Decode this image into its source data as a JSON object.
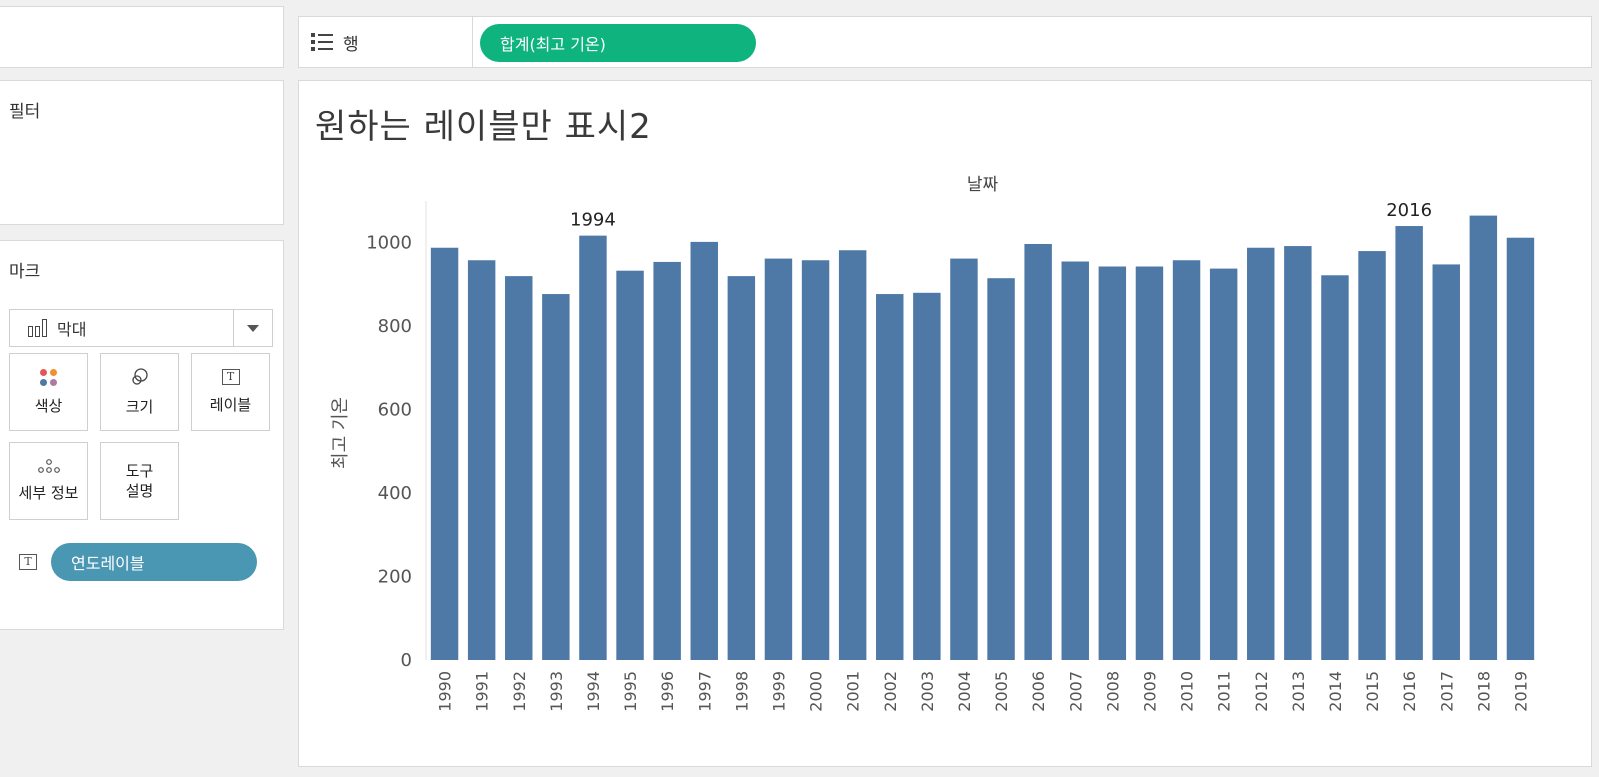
{
  "rows_shelf": {
    "label": "행",
    "pill": "합계(최고 기온)",
    "pill_color": "#0eb37e"
  },
  "filter_card": {
    "title": "필터"
  },
  "marks_card": {
    "title": "마크",
    "mark_type": "막대",
    "buttons": [
      {
        "label": "색상",
        "icon": "color-icon"
      },
      {
        "label": "크기",
        "icon": "size-icon"
      },
      {
        "label": "레이블",
        "icon": "text-icon"
      },
      {
        "label": "세부 정보",
        "icon": "detail-icon"
      },
      {
        "label": "도구 설명",
        "icon": "tooltip"
      }
    ],
    "label_pill": "연도레이블",
    "label_pill_color": "#4a97b3"
  },
  "view": {
    "title": "원하는 레이블만 표시2"
  },
  "chart_data": {
    "type": "bar",
    "title": "원하는 레이블만 표시2",
    "header": "날짜",
    "xlabel": "",
    "ylabel": "최고 기온",
    "ylim": [
      0,
      1100
    ],
    "yticks": [
      0,
      200,
      400,
      600,
      800,
      1000
    ],
    "bar_color": "#4e79a7",
    "categories": [
      "1990",
      "1991",
      "1992",
      "1993",
      "1994",
      "1995",
      "1996",
      "1997",
      "1998",
      "1999",
      "2000",
      "2001",
      "2002",
      "2003",
      "2004",
      "2005",
      "2006",
      "2007",
      "2008",
      "2009",
      "2010",
      "2011",
      "2012",
      "2013",
      "2014",
      "2015",
      "2016",
      "2017",
      "2018",
      "2019"
    ],
    "values": [
      988,
      958,
      920,
      877,
      1017,
      933,
      954,
      1002,
      920,
      962,
      958,
      982,
      877,
      880,
      962,
      915,
      997,
      955,
      943,
      943,
      958,
      938,
      988,
      992,
      922,
      980,
      1040,
      948,
      1065,
      1012
    ],
    "data_labels": [
      {
        "category": "1994",
        "text": "1994"
      },
      {
        "category": "2016",
        "text": "2016"
      }
    ]
  }
}
